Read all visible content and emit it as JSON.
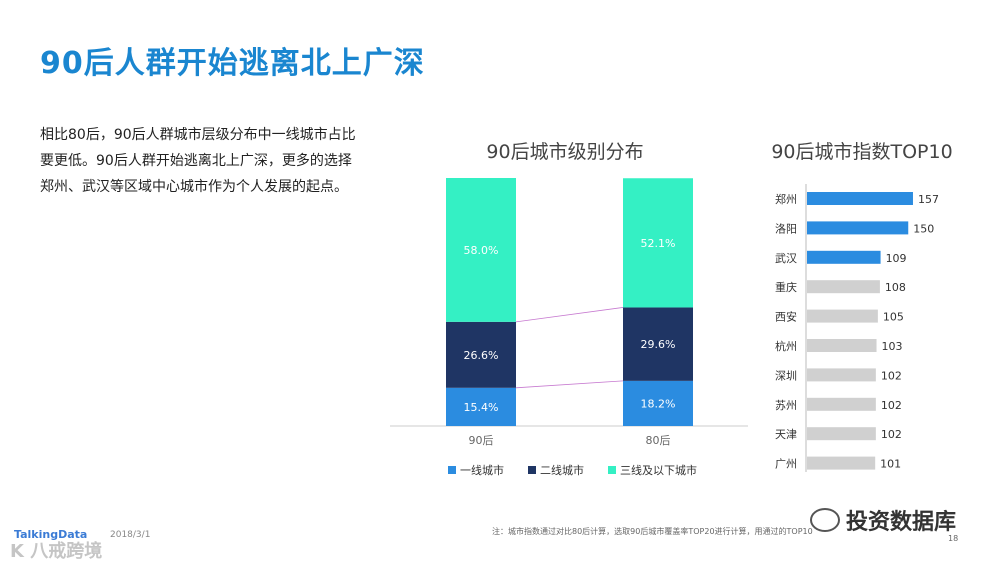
{
  "page": {
    "title": "90后人群开始逃离北上广深",
    "body": "相比80后，90后人群城市层级分布中一线城市占比要更低。90后人群开始逃离北上广深，更多的选择郑州、武汉等区域中心城市作为个人发展的起点。",
    "page_number": "18",
    "footer_logo": "TalkingData",
    "footer_date": "2018/3/1",
    "footer_note": "注：城市指数通过对比80后计算，选取90后城市覆盖率TOP20进行计算，用通过的TOP10",
    "watermark_left": "K 八戒跨境",
    "watermark_right": "投资数据库"
  },
  "colors": {
    "tier1": "#2b8ce0",
    "tier2": "#1f3564",
    "tier3": "#34f0c4",
    "bar_highlight": "#2b8ce0",
    "bar_normal": "#d0d0d0",
    "title": "#1a86d0"
  },
  "chart_data": [
    {
      "type": "bar",
      "stacked": true,
      "title": "90后城市级别分布",
      "categories": [
        "90后",
        "80后"
      ],
      "series": [
        {
          "name": "一线城市",
          "values": [
            15.4,
            18.2
          ],
          "labels": [
            "15.4%",
            "18.2%"
          ]
        },
        {
          "name": "二线城市",
          "values": [
            26.6,
            29.6
          ],
          "labels": [
            "26.6%",
            "29.6%"
          ]
        },
        {
          "name": "三线及以下城市",
          "values": [
            58.0,
            52.1
          ],
          "labels": [
            "58.0%",
            "52.1%"
          ]
        }
      ],
      "ylim": [
        0,
        100
      ],
      "legend": "bottom"
    },
    {
      "type": "bar",
      "orientation": "horizontal",
      "title": "90后城市指数TOP10",
      "categories": [
        "郑州",
        "洛阳",
        "武汉",
        "重庆",
        "西安",
        "杭州",
        "深圳",
        "苏州",
        "天津",
        "广州"
      ],
      "values": [
        157,
        150,
        109,
        108,
        105,
        103,
        102,
        102,
        102,
        101
      ],
      "highlighted": [
        true,
        true,
        true,
        false,
        false,
        false,
        false,
        false,
        false,
        false
      ],
      "xlim": [
        0,
        160
      ]
    }
  ]
}
